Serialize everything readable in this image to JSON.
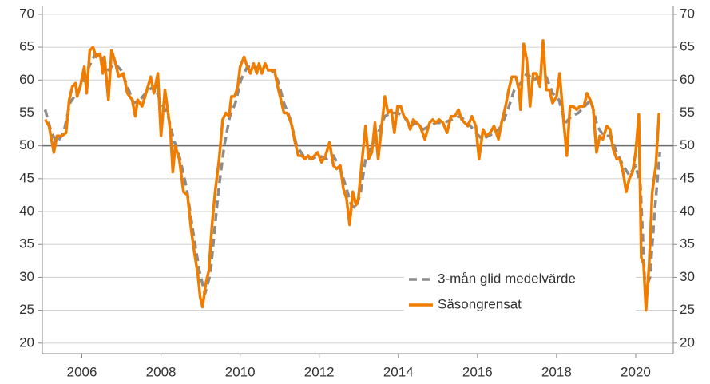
{
  "chart_data": {
    "type": "line",
    "xlim": [
      2005,
      2020.95
    ],
    "xticks": [
      2006,
      2008,
      2010,
      2012,
      2014,
      2016,
      2018,
      2020
    ],
    "ylim": [
      18.4,
      71.2
    ],
    "yticks": [
      20,
      25,
      30,
      35,
      40,
      45,
      50,
      55,
      60,
      65,
      70
    ],
    "y2lim": [
      18.4,
      71.2
    ],
    "y2ticks": [
      20,
      25,
      30,
      35,
      40,
      45,
      50,
      55,
      60,
      65,
      70
    ],
    "grid": true,
    "reference_line": 50,
    "legend": "lower right",
    "series": [
      {
        "name": "3-mån glid medelvärde",
        "color": "#8c8c8c",
        "dashed": true,
        "x": [
          2005.07,
          2005.23,
          2005.37,
          2005.54,
          2005.7,
          2005.86,
          2006.02,
          2006.18,
          2006.34,
          2006.51,
          2006.67,
          2006.83,
          2006.99,
          2007.15,
          2007.31,
          2007.47,
          2007.68,
          2007.84,
          2008.0,
          2008.16,
          2008.32,
          2008.48,
          2008.65,
          2008.81,
          2008.97,
          2009.11,
          2009.25,
          2009.35,
          2009.47,
          2009.6,
          2009.74,
          2009.88,
          2010.02,
          2010.18,
          2010.38,
          2010.59,
          2010.79,
          2010.95,
          2011.11,
          2011.27,
          2011.43,
          2011.6,
          2011.8,
          2012.0,
          2012.2,
          2012.36,
          2012.53,
          2012.69,
          2012.81,
          2012.93,
          2013.05,
          2013.17,
          2013.33,
          2013.49,
          2013.66,
          2013.82,
          2013.98,
          2014.14,
          2014.3,
          2014.46,
          2014.63,
          2014.79,
          2014.95,
          2015.15,
          2015.35,
          2015.56,
          2015.76,
          2015.96,
          2016.12,
          2016.28,
          2016.44,
          2016.61,
          2016.77,
          2016.93,
          2017.09,
          2017.25,
          2017.41,
          2017.58,
          2017.74,
          2017.9,
          2018.06,
          2018.22,
          2018.38,
          2018.55,
          2018.71,
          2018.87,
          2019.03,
          2019.19,
          2019.35,
          2019.52,
          2019.68,
          2019.84,
          2020.0,
          2020.12,
          2020.24,
          2020.36,
          2020.48,
          2020.61
        ],
        "values": [
          55.5,
          52,
          50.5,
          52,
          56.5,
          58,
          59.5,
          62,
          64,
          63.5,
          61.5,
          62.5,
          61.5,
          59,
          56.5,
          57,
          58.5,
          59,
          56.5,
          55,
          51,
          48,
          43.5,
          37,
          31,
          27.5,
          30.5,
          37,
          44,
          50,
          54.5,
          56.5,
          60,
          62,
          62,
          61.5,
          61.5,
          60,
          56.5,
          54,
          50,
          48.5,
          48,
          48.5,
          48,
          48.5,
          46.5,
          43.5,
          41,
          40.5,
          43,
          48,
          50,
          52,
          54.5,
          55,
          55,
          54.5,
          53,
          53.5,
          52.5,
          53,
          53.5,
          53.5,
          54,
          54.5,
          53.5,
          52,
          51,
          51.5,
          52,
          53,
          55.5,
          58.5,
          59.5,
          61,
          60,
          60.5,
          60.5,
          58,
          57,
          53.5,
          54.5,
          55,
          56,
          57,
          53,
          51.5,
          51.5,
          49,
          47,
          45.5,
          47,
          44,
          28,
          30,
          40,
          49
        ]
      },
      {
        "name": "Säsongrensat",
        "color": "#f07c00",
        "dashed": false,
        "x": [
          2005.07,
          2005.17,
          2005.29,
          2005.37,
          2005.49,
          2005.6,
          2005.68,
          2005.76,
          2005.84,
          2005.88,
          2005.96,
          2006.06,
          2006.12,
          2006.2,
          2006.28,
          2006.36,
          2006.46,
          2006.53,
          2006.57,
          2006.67,
          2006.75,
          2006.83,
          2006.93,
          2007.05,
          2007.15,
          2007.27,
          2007.35,
          2007.41,
          2007.52,
          2007.62,
          2007.74,
          2007.82,
          2007.92,
          2008.0,
          2008.1,
          2008.18,
          2008.24,
          2008.3,
          2008.36,
          2008.46,
          2008.57,
          2008.67,
          2008.77,
          2008.85,
          2008.93,
          2008.99,
          2009.05,
          2009.13,
          2009.21,
          2009.29,
          2009.37,
          2009.47,
          2009.56,
          2009.64,
          2009.72,
          2009.78,
          2009.86,
          2009.94,
          2010.0,
          2010.1,
          2010.18,
          2010.26,
          2010.34,
          2010.42,
          2010.48,
          2010.55,
          2010.63,
          2010.71,
          2010.79,
          2010.87,
          2010.95,
          2011.03,
          2011.11,
          2011.19,
          2011.29,
          2011.39,
          2011.47,
          2011.56,
          2011.64,
          2011.72,
          2011.8,
          2011.88,
          2011.96,
          2012.06,
          2012.16,
          2012.26,
          2012.36,
          2012.44,
          2012.53,
          2012.61,
          2012.69,
          2012.77,
          2012.85,
          2012.93,
          2012.99,
          2013.07,
          2013.17,
          2013.25,
          2013.33,
          2013.41,
          2013.49,
          2013.58,
          2013.66,
          2013.74,
          2013.82,
          2013.9,
          2013.98,
          2014.06,
          2014.14,
          2014.22,
          2014.3,
          2014.38,
          2014.46,
          2014.55,
          2014.67,
          2014.79,
          2014.87,
          2014.95,
          2015.03,
          2015.13,
          2015.23,
          2015.33,
          2015.43,
          2015.52,
          2015.6,
          2015.68,
          2015.76,
          2015.86,
          2015.96,
          2016.04,
          2016.14,
          2016.22,
          2016.32,
          2016.42,
          2016.53,
          2016.61,
          2016.71,
          2016.79,
          2016.87,
          2016.97,
          2017.05,
          2017.09,
          2017.17,
          2017.25,
          2017.33,
          2017.41,
          2017.49,
          2017.58,
          2017.66,
          2017.74,
          2017.82,
          2017.9,
          2018.0,
          2018.08,
          2018.16,
          2018.26,
          2018.34,
          2018.42,
          2018.51,
          2018.59,
          2018.69,
          2018.77,
          2018.85,
          2018.93,
          2019.01,
          2019.09,
          2019.17,
          2019.27,
          2019.35,
          2019.43,
          2019.52,
          2019.6,
          2019.68,
          2019.76,
          2019.84,
          2019.92,
          2020.0,
          2020.08,
          2020.14,
          2020.2,
          2020.26,
          2020.34,
          2020.42,
          2020.51,
          2020.59
        ],
        "values": [
          54,
          53,
          49,
          51.5,
          51.5,
          52,
          57,
          59,
          59.5,
          57.5,
          59,
          62,
          58,
          64.5,
          65,
          63.5,
          64,
          61,
          63.5,
          57,
          64.5,
          63,
          60.5,
          61,
          58,
          57,
          54.5,
          57,
          56,
          58,
          60.5,
          58,
          61,
          51.5,
          58.5,
          55,
          52,
          46,
          50,
          48,
          43,
          42.5,
          37,
          33.5,
          30.5,
          27,
          25.5,
          29,
          31,
          38,
          43,
          48,
          54,
          55,
          54.5,
          57.5,
          57.5,
          59,
          62,
          63.5,
          62,
          61,
          62.5,
          61,
          62.5,
          61,
          62.5,
          61.5,
          61.5,
          61.5,
          59,
          57,
          55,
          55,
          53.5,
          50.5,
          48.5,
          48.5,
          48,
          48.5,
          48,
          48.5,
          49,
          47.5,
          48.5,
          50.5,
          47,
          46.5,
          47,
          43.5,
          42,
          38,
          43,
          41,
          42,
          47,
          53,
          48,
          49,
          53.5,
          48,
          53,
          57.5,
          55,
          55.5,
          52,
          56,
          56,
          54.5,
          54,
          52.5,
          54,
          53.5,
          53,
          51,
          53.5,
          54,
          53.5,
          54,
          53.5,
          52,
          54.5,
          54.5,
          55.5,
          54,
          53.5,
          53,
          54.5,
          53,
          48,
          52.5,
          51.5,
          52,
          53,
          51,
          53.5,
          56,
          58.5,
          60.5,
          60.5,
          58.5,
          55.5,
          65.5,
          63,
          56,
          61,
          61,
          59,
          66,
          58.5,
          58.5,
          56.5,
          57.5,
          61,
          55,
          48.5,
          56,
          56,
          55.5,
          56,
          56,
          58,
          57,
          55.5,
          49,
          51.5,
          51,
          53,
          52.5,
          49.5,
          48,
          48,
          46,
          43,
          45,
          46,
          49,
          54.8,
          33,
          32,
          25,
          32,
          43,
          47,
          55
        ]
      }
    ]
  }
}
